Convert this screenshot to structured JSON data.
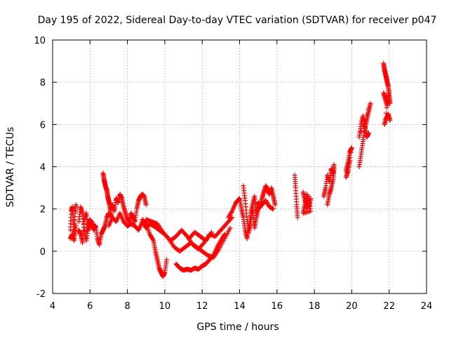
{
  "chart_data": {
    "type": "scatter",
    "title": "Day 195 of 2022, Sidereal Day-to-day VTEC variation (SDTVAR) for receiver p047",
    "xlabel": "GPS time / hours",
    "ylabel": "SDTVAR / TECUs",
    "xlim": [
      4,
      24
    ],
    "ylim": [
      -2,
      10
    ],
    "xticks": [
      "4",
      "6",
      "8",
      "10",
      "12",
      "14",
      "16",
      "18",
      "20",
      "22",
      "24"
    ],
    "yticks": [
      "-2",
      "0",
      "2",
      "4",
      "6",
      "8",
      "10"
    ],
    "grid": true,
    "marker": "+",
    "series": [
      {
        "name": "SDTVAR",
        "color": "#ff0000",
        "segments": [
          {
            "x": [
              4.95,
              5.0,
              5.05,
              5.1,
              5.15,
              5.2,
              5.25
            ],
            "y": [
              1.0,
              1.9,
              2.1,
              1.5,
              0.8,
              1.8,
              2.2
            ]
          },
          {
            "x": [
              4.95,
              5.05,
              5.15,
              5.25
            ],
            "y": [
              0.6,
              0.8,
              0.5,
              1.2
            ]
          },
          {
            "x": [
              5.4,
              5.5,
              5.6,
              5.7,
              5.8,
              5.9,
              6.0,
              6.1,
              6.2,
              6.3,
              6.4,
              6.5,
              6.6,
              6.7,
              6.8,
              6.9,
              7.0
            ],
            "y": [
              1.4,
              2.1,
              1.8,
              1.0,
              0.5,
              1.2,
              1.5,
              1.3,
              1.1,
              1.2,
              0.6,
              0.3,
              0.8,
              1.0,
              1.2,
              1.6,
              1.8
            ]
          },
          {
            "x": [
              5.4,
              5.5,
              5.6,
              5.7,
              5.8,
              5.9,
              6.0,
              6.1,
              6.2,
              6.3
            ],
            "y": [
              1.0,
              0.8,
              0.4,
              1.5,
              1.8,
              1.0,
              1.3,
              1.4,
              1.0,
              1.2
            ]
          },
          {
            "x": [
              6.7,
              6.75,
              6.8,
              6.85,
              6.9,
              6.95,
              7.0,
              7.05,
              7.1,
              7.15
            ],
            "y": [
              3.7,
              3.4,
              3.2,
              3.0,
              2.9,
              2.6,
              2.4,
              2.2,
              1.8,
              1.6
            ]
          },
          {
            "x": [
              7.1,
              7.2,
              7.3,
              7.4,
              7.5,
              7.6,
              7.7,
              7.8,
              7.9,
              8.0,
              8.1,
              8.2,
              8.3,
              8.4,
              8.5,
              8.6,
              8.7,
              8.8,
              8.9,
              9.0
            ],
            "y": [
              2.0,
              2.2,
              1.9,
              2.5,
              2.3,
              2.7,
              2.5,
              2.1,
              1.8,
              1.5,
              1.4,
              1.8,
              1.6,
              1.4,
              2.0,
              2.4,
              2.6,
              2.7,
              2.6,
              2.2
            ]
          },
          {
            "x": [
              7.0,
              7.2,
              7.4,
              7.6,
              7.8,
              8.0,
              8.2,
              8.4,
              8.6,
              8.8,
              9.0,
              9.2,
              9.4
            ],
            "y": [
              1.2,
              1.6,
              1.4,
              1.8,
              1.4,
              1.2,
              1.3,
              1.2,
              1.0,
              1.4,
              1.1,
              1.3,
              1.2
            ]
          },
          {
            "x": [
              8.8,
              9.0,
              9.2,
              9.4,
              9.5,
              9.6,
              9.7,
              9.8,
              9.9,
              10.0,
              10.1
            ],
            "y": [
              1.5,
              1.3,
              0.8,
              0.5,
              0.0,
              -0.4,
              -0.8,
              -1.0,
              -1.2,
              -1.0,
              -0.4
            ]
          },
          {
            "x": [
              9.0,
              9.3,
              9.6,
              9.9,
              10.2,
              10.5,
              10.8,
              11.1,
              11.4,
              11.7,
              12.0,
              12.3,
              12.6,
              12.9,
              13.2,
              13.5
            ],
            "y": [
              1.5,
              1.4,
              1.3,
              0.9,
              0.6,
              0.2,
              0.0,
              0.2,
              0.4,
              0.2,
              0.0,
              -0.2,
              -0.3,
              0.1,
              0.6,
              1.1
            ]
          },
          {
            "x": [
              9.4,
              9.7,
              10.0,
              10.3,
              10.6,
              10.9,
              11.2,
              11.5,
              11.8,
              12.1,
              12.4,
              12.7,
              13.0,
              13.3,
              13.6
            ],
            "y": [
              1.2,
              1.0,
              0.8,
              0.5,
              0.7,
              1.0,
              0.7,
              0.3,
              0.1,
              0.4,
              0.8,
              0.7,
              1.0,
              1.3,
              1.6
            ]
          },
          {
            "x": [
              10.6,
              10.8,
              11.0,
              11.2,
              11.4,
              11.6,
              11.8,
              12.0,
              12.2,
              12.4,
              12.6,
              12.8,
              13.0,
              13.2
            ],
            "y": [
              -0.6,
              -0.8,
              -0.9,
              -0.85,
              -0.9,
              -0.8,
              -0.85,
              -0.7,
              -0.6,
              -0.4,
              -0.2,
              0.2,
              0.5,
              0.8
            ]
          },
          {
            "x": [
              11.0,
              11.3,
              11.6,
              11.9,
              12.2,
              12.5
            ],
            "y": [
              0.9,
              0.6,
              0.9,
              0.7,
              0.5,
              0.9
            ]
          },
          {
            "x": [
              13.4,
              13.6,
              13.8,
              14.0,
              14.1,
              14.2,
              14.3,
              14.4,
              14.5,
              14.6,
              14.7,
              14.8,
              14.9,
              15.0,
              15.1,
              15.2,
              15.3,
              15.4,
              15.5,
              15.6,
              15.7,
              15.8,
              15.9
            ],
            "y": [
              1.6,
              1.9,
              2.3,
              2.5,
              2.0,
              1.6,
              1.0,
              0.6,
              1.2,
              1.8,
              2.2,
              2.6,
              1.8,
              2.3,
              2.1,
              2.5,
              2.8,
              3.1,
              2.9,
              2.7,
              3.0,
              2.6,
              2.2
            ]
          },
          {
            "x": [
              14.2,
              14.3,
              14.4,
              14.5,
              14.6,
              14.7,
              14.8,
              14.9,
              15.0,
              15.2,
              15.4,
              15.6,
              15.8
            ],
            "y": [
              3.1,
              2.4,
              1.5,
              0.9,
              1.4,
              2.0,
              1.1,
              1.6,
              2.0,
              2.2,
              2.4,
              2.1,
              2.0
            ]
          },
          {
            "x": [
              16.95,
              17.0,
              17.05,
              17.1
            ],
            "y": [
              3.6,
              3.0,
              2.2,
              1.6
            ]
          },
          {
            "x": [
              17.4,
              17.5,
              17.6,
              17.7,
              17.8,
              17.4,
              17.5,
              17.6,
              17.7,
              17.8
            ],
            "y": [
              2.8,
              2.4,
              2.0,
              2.6,
              1.9,
              1.8,
              2.2,
              2.7,
              2.1,
              2.5
            ]
          },
          {
            "x": [
              18.5,
              18.6,
              18.7,
              18.8,
              18.9,
              19.0,
              19.05
            ],
            "y": [
              2.6,
              3.0,
              3.6,
              3.3,
              3.9,
              3.7,
              4.1
            ]
          },
          {
            "x": [
              18.7,
              18.8,
              18.9,
              19.0,
              19.05
            ],
            "y": [
              2.2,
              2.7,
              3.0,
              3.4,
              3.9
            ]
          },
          {
            "x": [
              19.7,
              19.8,
              19.9,
              20.0,
              19.7,
              19.8,
              19.9
            ],
            "y": [
              3.8,
              4.2,
              4.7,
              4.9,
              3.5,
              3.8,
              4.3
            ]
          },
          {
            "x": [
              20.4,
              20.5,
              20.6,
              20.7,
              20.8,
              20.9,
              21.0,
              20.4,
              20.5,
              20.6,
              20.7,
              20.8,
              20.9
            ],
            "y": [
              4.0,
              4.6,
              5.2,
              5.8,
              6.2,
              6.6,
              7.0,
              5.4,
              6.0,
              6.4,
              5.9,
              5.4,
              5.6
            ]
          },
          {
            "x": [
              21.7,
              21.75,
              21.8,
              21.85,
              21.9,
              21.95,
              22.0,
              22.05,
              21.7,
              21.8,
              21.9,
              22.0,
              21.75,
              21.85,
              21.95,
              22.05
            ],
            "y": [
              8.9,
              8.6,
              8.4,
              8.2,
              8.0,
              7.8,
              7.4,
              7.0,
              7.5,
              7.2,
              6.9,
              7.6,
              6.0,
              6.3,
              6.5,
              6.2
            ]
          }
        ]
      }
    ]
  }
}
